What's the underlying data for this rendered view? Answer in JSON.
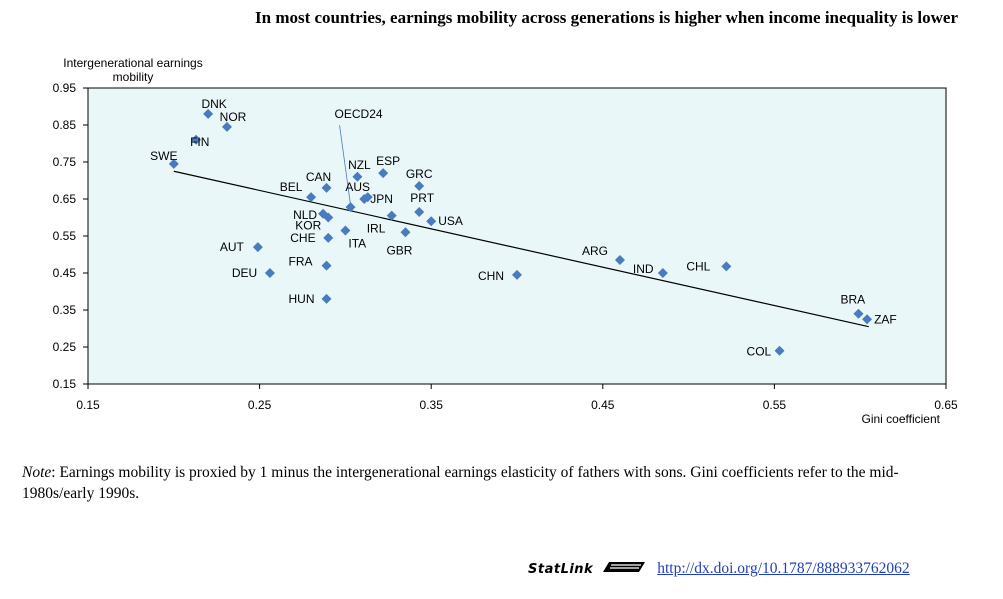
{
  "page": {
    "title": "In most countries, earnings mobility across generations is higher when income inequality is lower",
    "note_label": "Note",
    "note_text": ": Earnings mobility is proxied by 1 minus the intergenerational earnings elasticity of fathers with sons. Gini coefficients refer to the mid-1980s/early 1990s.",
    "statlink_label": "StatLink",
    "statlink_logo": "statlink-logo-icon",
    "statlink_url": "http://dx.doi.org/10.1787/888933762062"
  },
  "chart_data": {
    "type": "scatter",
    "title": "In most countries, earnings mobility across generations is higher when income inequality is lower",
    "xlabel": "Gini coefficient",
    "ylabel": "Intergenerational earnings mobility",
    "xlim": [
      0.15,
      0.65
    ],
    "ylim": [
      0.15,
      0.95
    ],
    "xticks": [
      "0.15",
      "0.25",
      "0.35",
      "0.45",
      "0.55",
      "0.65"
    ],
    "yticks": [
      "0.15",
      "0.25",
      "0.35",
      "0.45",
      "0.55",
      "0.65",
      "0.75",
      "0.85",
      "0.95"
    ],
    "grid": false,
    "background_color": "#eaf7f9",
    "marker_color": "#4a7bbf",
    "points": [
      {
        "label": "DNK",
        "x": 0.22,
        "y": 0.88
      },
      {
        "label": "NOR",
        "x": 0.231,
        "y": 0.845
      },
      {
        "label": "FIN",
        "x": 0.213,
        "y": 0.81
      },
      {
        "label": "SWE",
        "x": 0.2,
        "y": 0.745
      },
      {
        "label": "CAN",
        "x": 0.289,
        "y": 0.68
      },
      {
        "label": "BEL",
        "x": 0.28,
        "y": 0.655
      },
      {
        "label": "NZL",
        "x": 0.307,
        "y": 0.71
      },
      {
        "label": "ESP",
        "x": 0.322,
        "y": 0.72
      },
      {
        "label": "AUS",
        "x": 0.313,
        "y": 0.655
      },
      {
        "label": "JPN",
        "x": 0.311,
        "y": 0.65
      },
      {
        "label": "OECD24",
        "x": 0.303,
        "y": 0.628
      },
      {
        "label": "GRC",
        "x": 0.343,
        "y": 0.685
      },
      {
        "label": "PRT",
        "x": 0.343,
        "y": 0.615
      },
      {
        "label": "USA",
        "x": 0.35,
        "y": 0.59
      },
      {
        "label": "NLD",
        "x": 0.287,
        "y": 0.61
      },
      {
        "label": "KOR",
        "x": 0.29,
        "y": 0.6
      },
      {
        "label": "IRL",
        "x": 0.327,
        "y": 0.605
      },
      {
        "label": "CHE",
        "x": 0.29,
        "y": 0.545
      },
      {
        "label": "ITA",
        "x": 0.3,
        "y": 0.565
      },
      {
        "label": "GBR",
        "x": 0.335,
        "y": 0.56
      },
      {
        "label": "AUT",
        "x": 0.249,
        "y": 0.52
      },
      {
        "label": "DEU",
        "x": 0.256,
        "y": 0.45
      },
      {
        "label": "FRA",
        "x": 0.289,
        "y": 0.47
      },
      {
        "label": "HUN",
        "x": 0.289,
        "y": 0.38
      },
      {
        "label": "CHN",
        "x": 0.4,
        "y": 0.445
      },
      {
        "label": "ARG",
        "x": 0.46,
        "y": 0.485
      },
      {
        "label": "IND",
        "x": 0.485,
        "y": 0.45
      },
      {
        "label": "CHL",
        "x": 0.522,
        "y": 0.468
      },
      {
        "label": "BRA",
        "x": 0.599,
        "y": 0.34
      },
      {
        "label": "ZAF",
        "x": 0.604,
        "y": 0.325
      },
      {
        "label": "COL",
        "x": 0.553,
        "y": 0.24
      }
    ],
    "trendline": {
      "x": [
        0.2,
        0.605
      ],
      "y": [
        0.725,
        0.305
      ]
    }
  }
}
